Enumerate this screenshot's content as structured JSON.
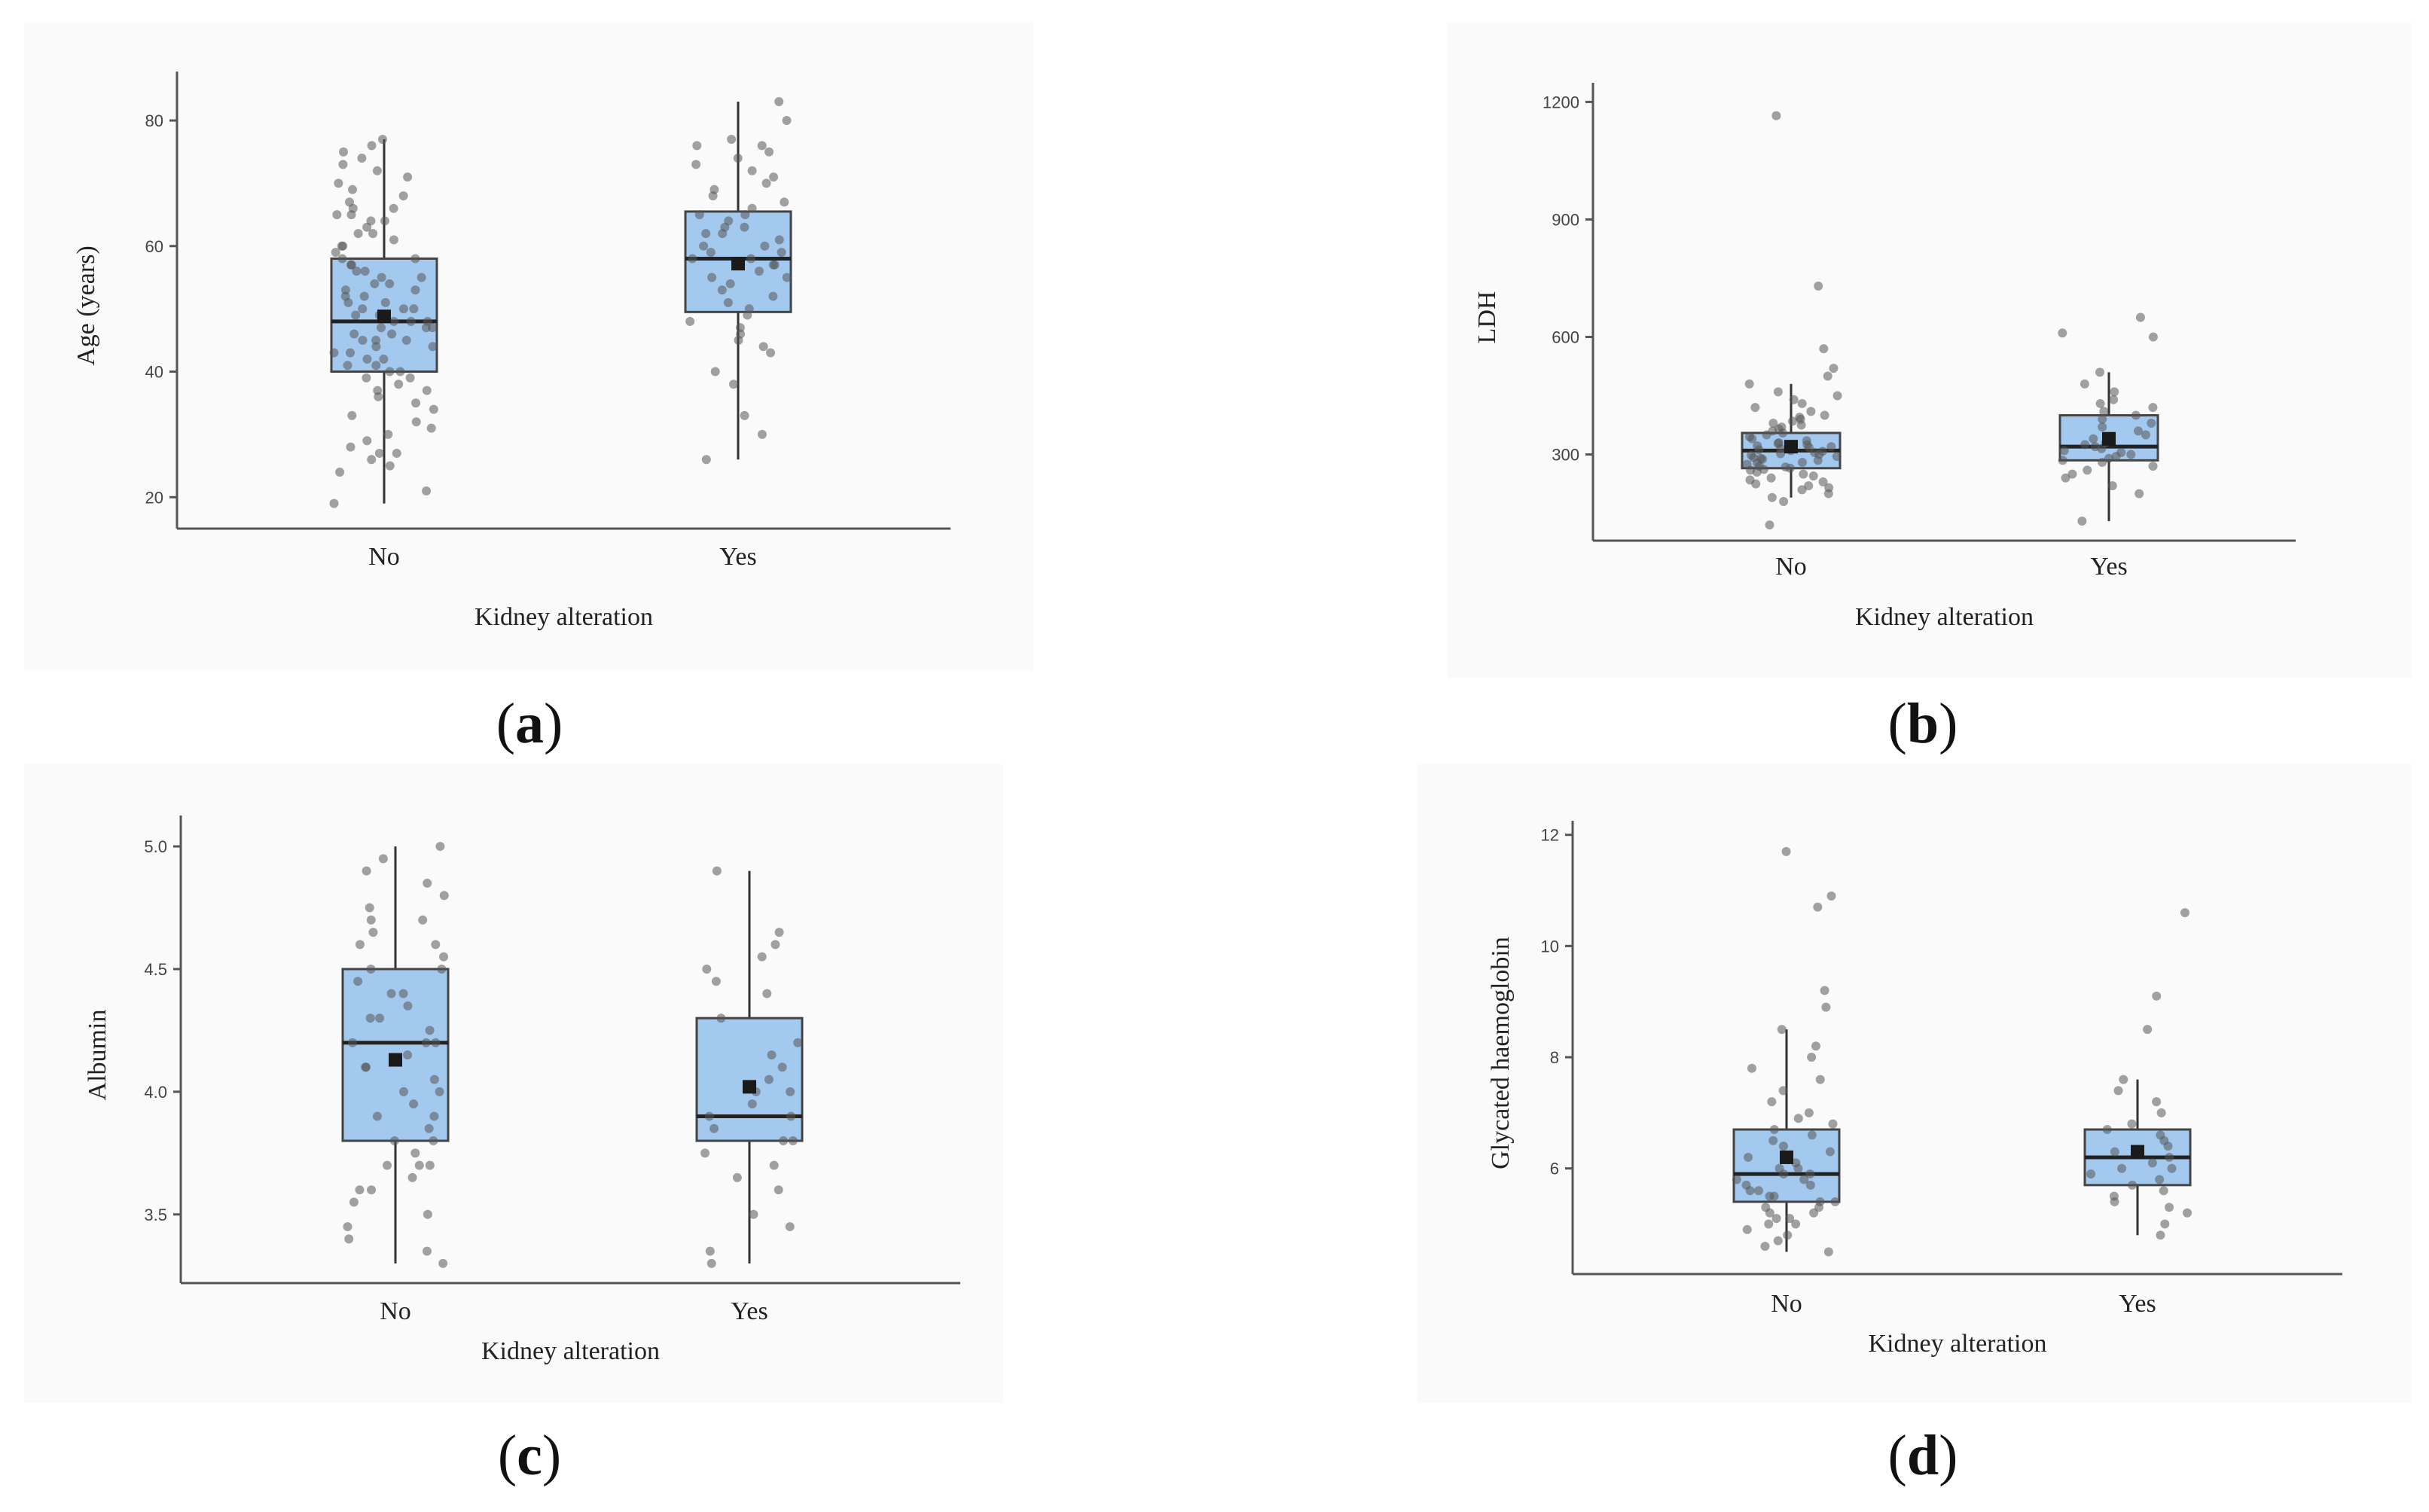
{
  "panel_labels": {
    "a": "a",
    "b": "b",
    "c": "c",
    "d": "d"
  },
  "colors": {
    "box_fill": "#a3c9ef",
    "box_stroke": "#333333",
    "points": "#555555",
    "panel_bg": "#fafafa"
  },
  "chart_data": [
    {
      "id": "a",
      "type": "boxplot",
      "xlabel": "Kidney alteration",
      "ylabel": "Age (years)",
      "ylim": [
        15,
        86
      ],
      "yticks": [
        "20",
        "40",
        "60",
        "80"
      ],
      "categories": [
        "No",
        "Yes"
      ],
      "boxes": [
        {
          "category": "No",
          "min": 19,
          "q1": 40,
          "median": 48,
          "q3": 58,
          "max": 77,
          "mean": 48.8,
          "points": [
            19,
            21,
            24,
            25,
            26,
            27,
            27,
            28,
            29,
            30,
            31,
            32,
            33,
            34,
            35,
            36,
            37,
            37,
            38,
            39,
            39,
            40,
            40,
            41,
            41,
            42,
            42,
            43,
            43,
            44,
            44,
            45,
            45,
            45,
            46,
            46,
            47,
            47,
            47,
            48,
            48,
            48,
            49,
            49,
            50,
            50,
            50,
            51,
            51,
            52,
            52,
            53,
            53,
            54,
            54,
            55,
            55,
            56,
            56,
            57,
            57,
            58,
            58,
            59,
            60,
            60,
            61,
            62,
            62,
            63,
            64,
            64,
            65,
            65,
            66,
            66,
            67,
            68,
            69,
            70,
            71,
            72,
            73,
            74,
            75,
            76,
            77
          ]
        },
        {
          "category": "Yes",
          "min": 26,
          "q1": 49.5,
          "median": 58,
          "q3": 65.5,
          "max": 83,
          "mean": 57.2,
          "points": [
            26,
            30,
            33,
            38,
            40,
            43,
            44,
            45,
            46,
            47,
            48,
            49,
            50,
            51,
            52,
            53,
            54,
            55,
            55,
            56,
            57,
            57,
            58,
            58,
            59,
            59,
            60,
            60,
            61,
            62,
            62,
            63,
            63,
            64,
            65,
            65,
            66,
            67,
            68,
            69,
            70,
            71,
            72,
            73,
            74,
            75,
            76,
            76,
            77,
            80,
            83
          ]
        }
      ]
    },
    {
      "id": "b",
      "type": "boxplot",
      "xlabel": "Kidney alteration",
      "ylabel": "LDH",
      "ylim": [
        80,
        1220
      ],
      "yticks": [
        "300",
        "600",
        "900",
        "1200"
      ],
      "categories": [
        "No",
        "Yes"
      ],
      "boxes": [
        {
          "category": "No",
          "min": 190,
          "q1": 265,
          "median": 310,
          "q3": 355,
          "max": 480,
          "mean": 320,
          "points": [
            120,
            180,
            190,
            200,
            210,
            215,
            220,
            225,
            230,
            235,
            240,
            245,
            250,
            255,
            260,
            262,
            265,
            268,
            270,
            275,
            278,
            280,
            285,
            288,
            290,
            292,
            295,
            298,
            300,
            302,
            305,
            308,
            310,
            312,
            315,
            318,
            320,
            322,
            325,
            328,
            330,
            335,
            340,
            345,
            350,
            355,
            360,
            365,
            370,
            375,
            380,
            385,
            390,
            395,
            400,
            410,
            420,
            430,
            440,
            450,
            460,
            480,
            500,
            520,
            570,
            730,
            1165
          ]
        },
        {
          "category": "Yes",
          "min": 130,
          "q1": 285,
          "median": 320,
          "q3": 400,
          "max": 510,
          "mean": 340,
          "points": [
            130,
            200,
            220,
            240,
            250,
            260,
            270,
            280,
            285,
            290,
            295,
            300,
            305,
            310,
            315,
            320,
            325,
            330,
            340,
            350,
            360,
            370,
            380,
            390,
            400,
            410,
            420,
            430,
            440,
            460,
            480,
            510,
            600,
            610,
            650
          ]
        }
      ]
    },
    {
      "id": "c",
      "type": "boxplot",
      "xlabel": "Kidney alteration",
      "ylabel": "Albumin",
      "ylim": [
        3.22,
        5.08
      ],
      "yticks": [
        "3.5",
        "4.0",
        "4.5",
        "5.0"
      ],
      "categories": [
        "No",
        "Yes"
      ],
      "boxes": [
        {
          "category": "No",
          "min": 3.3,
          "q1": 3.8,
          "median": 4.2,
          "q3": 4.5,
          "max": 5.0,
          "mean": 4.13,
          "points": [
            3.3,
            3.35,
            3.4,
            3.45,
            3.5,
            3.55,
            3.6,
            3.6,
            3.65,
            3.7,
            3.7,
            3.7,
            3.75,
            3.8,
            3.8,
            3.85,
            3.9,
            3.9,
            3.95,
            4.0,
            4.0,
            4.05,
            4.1,
            4.1,
            4.15,
            4.2,
            4.2,
            4.2,
            4.25,
            4.3,
            4.3,
            4.35,
            4.4,
            4.4,
            4.45,
            4.5,
            4.5,
            4.55,
            4.6,
            4.6,
            4.65,
            4.7,
            4.7,
            4.75,
            4.8,
            4.85,
            4.9,
            4.95,
            5.0
          ]
        },
        {
          "category": "Yes",
          "min": 3.3,
          "q1": 3.8,
          "median": 3.9,
          "q3": 4.3,
          "max": 4.9,
          "mean": 4.02,
          "points": [
            3.3,
            3.35,
            3.45,
            3.5,
            3.6,
            3.65,
            3.7,
            3.75,
            3.8,
            3.8,
            3.85,
            3.9,
            3.9,
            3.95,
            4.0,
            4.0,
            4.05,
            4.1,
            4.15,
            4.2,
            4.3,
            4.4,
            4.45,
            4.5,
            4.55,
            4.6,
            4.65,
            4.9
          ]
        }
      ]
    },
    {
      "id": "d",
      "type": "boxplot",
      "xlabel": "Kidney alteration",
      "ylabel": "Glycated haemoglobin",
      "ylim": [
        4.1,
        12.05
      ],
      "yticks": [
        "6",
        "8",
        "10",
        "12"
      ],
      "categories": [
        "No",
        "Yes"
      ],
      "boxes": [
        {
          "category": "No",
          "min": 4.5,
          "q1": 5.4,
          "median": 5.9,
          "q3": 6.7,
          "max": 8.5,
          "mean": 6.2,
          "points": [
            4.5,
            4.6,
            4.7,
            4.8,
            4.9,
            5.0,
            5.0,
            5.1,
            5.1,
            5.2,
            5.2,
            5.3,
            5.3,
            5.4,
            5.4,
            5.5,
            5.5,
            5.6,
            5.6,
            5.7,
            5.7,
            5.8,
            5.8,
            5.9,
            5.9,
            6.0,
            6.0,
            6.1,
            6.2,
            6.3,
            6.4,
            6.5,
            6.6,
            6.7,
            6.8,
            6.9,
            7.0,
            7.2,
            7.4,
            7.6,
            7.8,
            8.0,
            8.2,
            8.5,
            8.9,
            9.2,
            10.7,
            10.9,
            11.7
          ]
        },
        {
          "category": "Yes",
          "min": 4.8,
          "q1": 5.7,
          "median": 6.2,
          "q3": 6.7,
          "max": 7.6,
          "mean": 6.3,
          "points": [
            4.8,
            5.0,
            5.2,
            5.3,
            5.4,
            5.5,
            5.6,
            5.7,
            5.8,
            5.9,
            6.0,
            6.0,
            6.1,
            6.2,
            6.3,
            6.4,
            6.5,
            6.6,
            6.7,
            6.8,
            7.0,
            7.2,
            7.4,
            7.6,
            8.5,
            9.1,
            10.6
          ]
        }
      ]
    }
  ]
}
